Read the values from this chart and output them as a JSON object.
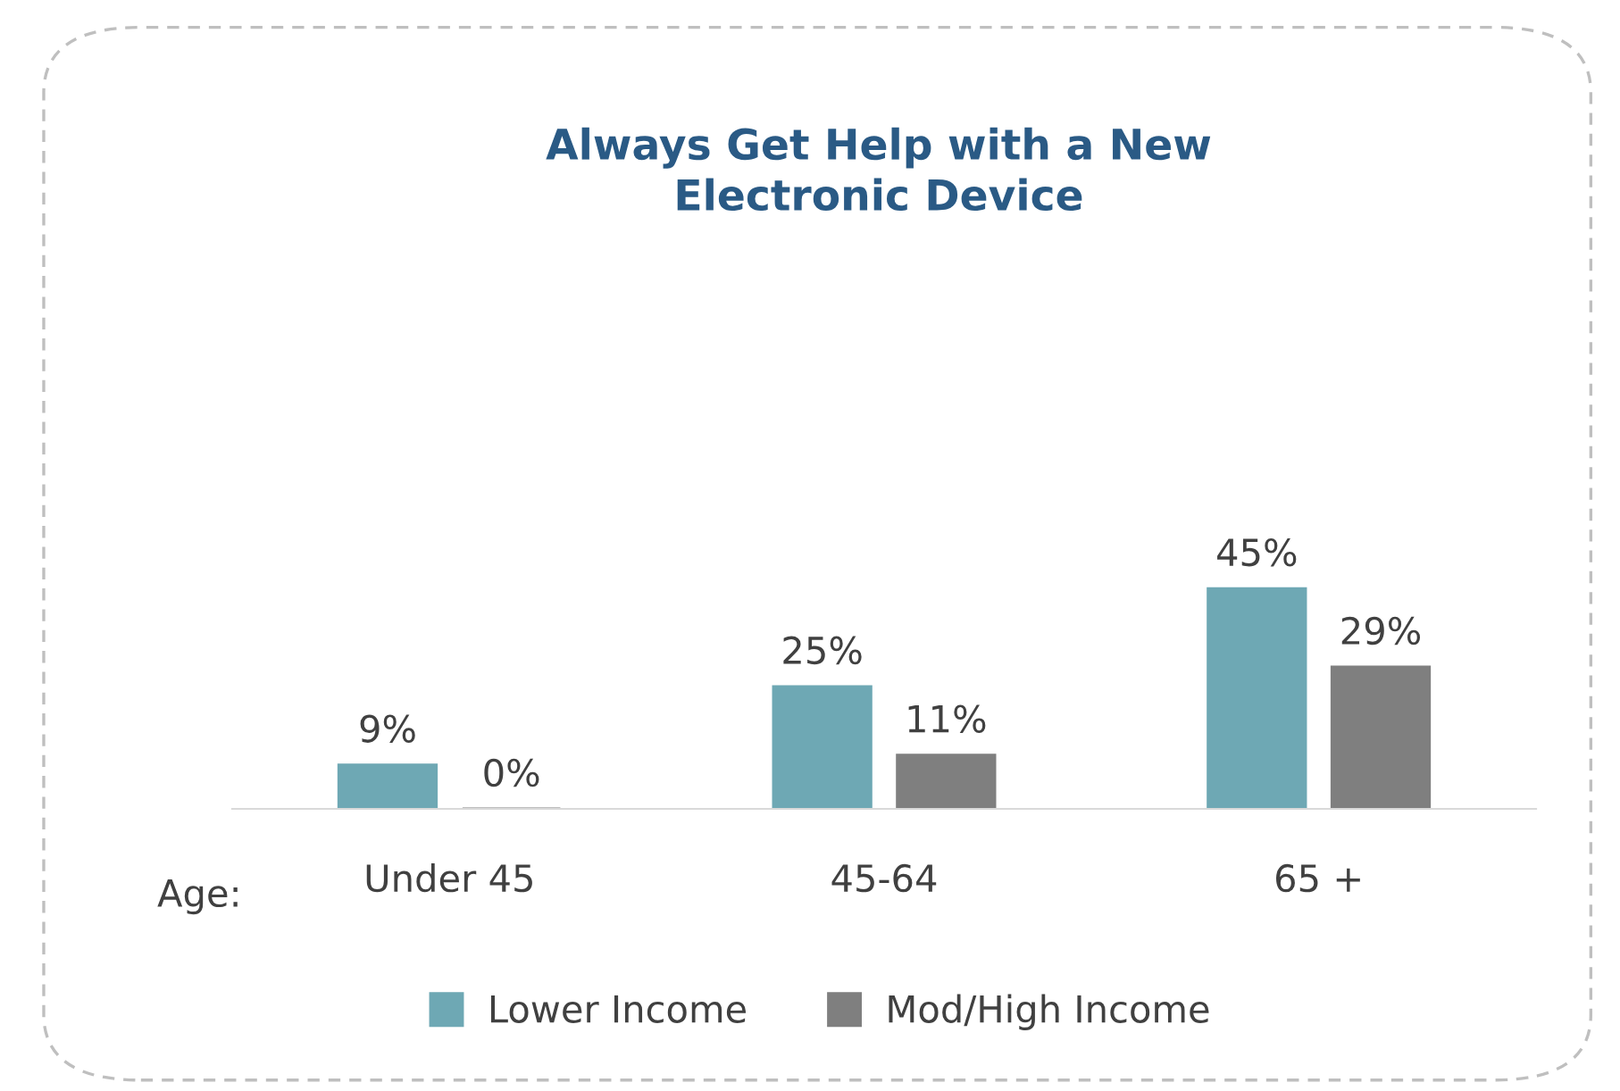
{
  "chart_data": {
    "type": "bar",
    "title": "Always Get Help with a New\nElectronic Device",
    "xlabel": "Age:",
    "categories": [
      "Under 45",
      "45-64",
      "65 +"
    ],
    "series": [
      {
        "name": "Lower Income",
        "color": "#6ea8b4",
        "values": [
          9,
          25,
          45
        ],
        "value_labels": [
          "9%",
          "25%",
          "45%"
        ]
      },
      {
        "name": "Mod/High Income",
        "color": "#7f7f7f",
        "values": [
          0,
          11,
          29
        ],
        "value_labels": [
          "0%",
          "11%",
          "29%"
        ]
      }
    ],
    "legend": "bottom",
    "grid": false
  }
}
